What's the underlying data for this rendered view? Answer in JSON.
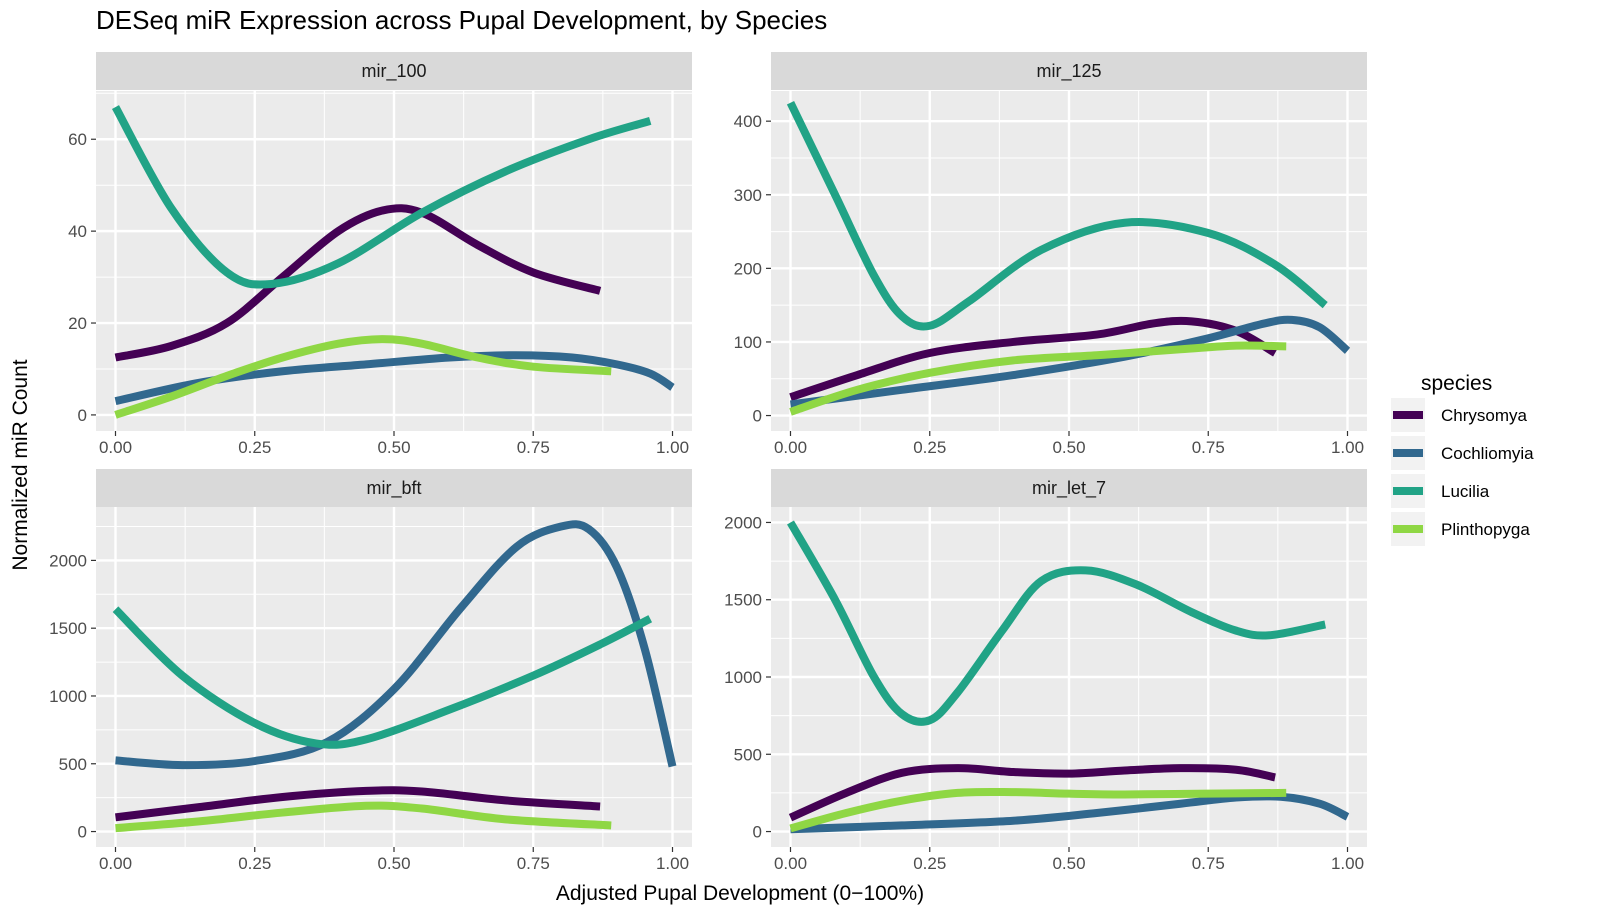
{
  "colors": {
    "panel_background": "#EBEBEB",
    "strip_background": "#D9D9D9",
    "grid": "#FFFFFF",
    "tick_text": "#4D4D4D"
  },
  "chart_data": {
    "type": "line",
    "title": "DESeq miR Expression across Pupal Development, by Species",
    "xlabel": "Adjusted Pupal Development (0−100%)",
    "ylabel": "Normalized miR Count",
    "legend_title": "species",
    "legend_placement": "right",
    "grid": true,
    "species": [
      {
        "name": "Chrysomya",
        "color": "#440154"
      },
      {
        "name": "Cochliomyia",
        "color": "#31688E"
      },
      {
        "name": "Lucilia",
        "color": "#21A386"
      },
      {
        "name": "Plinthopyga",
        "color": "#8FD744"
      }
    ],
    "xlim": [
      -0.035,
      1.035
    ],
    "x_ticks": [
      0,
      0.25,
      0.5,
      0.75,
      1
    ],
    "x_tick_labels": [
      "0.00",
      "0.25",
      "0.50",
      "0.75",
      "1.00"
    ],
    "panels": [
      {
        "label": "mir_100",
        "ylim": [
          -3.5,
          70.5
        ],
        "y_ticks": [
          0,
          20,
          40,
          60
        ],
        "y_tick_labels": [
          "0",
          "20",
          "40",
          "60"
        ],
        "series": [
          {
            "name": "Chrysomya",
            "x": [
              0,
              0.1,
              0.2,
              0.3,
              0.4,
              0.48,
              0.55,
              0.65,
              0.75,
              0.87
            ],
            "y": [
              12.5,
              15,
              20,
              30,
              40,
              44.5,
              44,
              37,
              31,
              27
            ]
          },
          {
            "name": "Cochliomyia",
            "x": [
              0,
              0.15,
              0.3,
              0.45,
              0.6,
              0.72,
              0.82,
              0.9,
              0.96,
              1.0
            ],
            "y": [
              3,
              7,
              9.5,
              11,
              12.5,
              13,
              12.5,
              11,
              9,
              6
            ]
          },
          {
            "name": "Lucilia",
            "x": [
              0,
              0.1,
              0.2,
              0.28,
              0.4,
              0.55,
              0.7,
              0.85,
              0.96
            ],
            "y": [
              67,
              45,
              31,
              28.5,
              33,
              44,
              53,
              60,
              64
            ]
          },
          {
            "name": "Plinthopyga",
            "x": [
              0,
              0.1,
              0.2,
              0.3,
              0.4,
              0.48,
              0.55,
              0.65,
              0.75,
              0.89
            ],
            "y": [
              0,
              4,
              8.5,
              12.5,
              15.5,
              16.5,
              15.5,
              12.5,
              10.5,
              9.5
            ]
          }
        ]
      },
      {
        "label": "mir_125",
        "ylim": [
          -21,
          441
        ],
        "y_ticks": [
          0,
          100,
          200,
          300,
          400
        ],
        "y_tick_labels": [
          "0",
          "100",
          "200",
          "300",
          "400"
        ],
        "series": [
          {
            "name": "Chrysomya",
            "x": [
              0,
              0.12,
              0.25,
              0.4,
              0.55,
              0.65,
              0.72,
              0.8,
              0.87
            ],
            "y": [
              25,
              55,
              85,
              100,
              110,
              125,
              128,
              115,
              85
            ]
          },
          {
            "name": "Cochliomyia",
            "x": [
              0,
              0.2,
              0.4,
              0.6,
              0.75,
              0.85,
              0.9,
              0.95,
              1.0
            ],
            "y": [
              15,
              35,
              55,
              80,
              105,
              125,
              130,
              120,
              88
            ]
          },
          {
            "name": "Lucilia",
            "x": [
              0,
              0.08,
              0.15,
              0.2,
              0.25,
              0.32,
              0.45,
              0.6,
              0.75,
              0.87,
              0.96
            ],
            "y": [
              425,
              300,
              190,
              135,
              122,
              155,
              225,
              262,
              248,
              205,
              150
            ]
          },
          {
            "name": "Plinthopyga",
            "x": [
              0,
              0.12,
              0.25,
              0.4,
              0.55,
              0.7,
              0.8,
              0.89
            ],
            "y": [
              5,
              35,
              58,
              75,
              82,
              90,
              95,
              94
            ]
          }
        ]
      },
      {
        "label": "mir_bft",
        "ylim": [
          -114,
          2394
        ],
        "y_ticks": [
          0,
          500,
          1000,
          1500,
          2000
        ],
        "y_tick_labels": [
          "0",
          "500",
          "1000",
          "1500",
          "2000"
        ],
        "series": [
          {
            "name": "Chrysomya",
            "x": [
              0,
              0.15,
              0.3,
              0.45,
              0.55,
              0.7,
              0.87
            ],
            "y": [
              105,
              180,
              255,
              300,
              295,
              230,
              185
            ]
          },
          {
            "name": "Cochliomyia",
            "x": [
              0,
              0.12,
              0.25,
              0.38,
              0.5,
              0.62,
              0.72,
              0.8,
              0.85,
              0.9,
              0.95,
              1.0
            ],
            "y": [
              525,
              490,
              520,
              660,
              1050,
              1650,
              2100,
              2250,
              2230,
              1950,
              1350,
              480
            ]
          },
          {
            "name": "Lucilia",
            "x": [
              0,
              0.12,
              0.25,
              0.36,
              0.45,
              0.6,
              0.75,
              0.87,
              0.96
            ],
            "y": [
              1640,
              1150,
              800,
              650,
              680,
              900,
              1150,
              1380,
              1570
            ]
          },
          {
            "name": "Plinthopyga",
            "x": [
              0,
              0.15,
              0.3,
              0.45,
              0.55,
              0.7,
              0.89
            ],
            "y": [
              25,
              75,
              140,
              190,
              170,
              90,
              45
            ]
          }
        ]
      },
      {
        "label": "mir_let_7",
        "ylim": [
          -100,
          2100
        ],
        "y_ticks": [
          0,
          500,
          1000,
          1500,
          2000
        ],
        "y_tick_labels": [
          "0",
          "500",
          "1000",
          "1500",
          "2000"
        ],
        "series": [
          {
            "name": "Chrysomya",
            "x": [
              0,
              0.1,
              0.2,
              0.3,
              0.4,
              0.5,
              0.6,
              0.7,
              0.8,
              0.87
            ],
            "y": [
              90,
              250,
              380,
              410,
              385,
              375,
              395,
              410,
              400,
              350
            ]
          },
          {
            "name": "Cochliomyia",
            "x": [
              0,
              0.2,
              0.4,
              0.55,
              0.7,
              0.8,
              0.88,
              0.95,
              1.0
            ],
            "y": [
              15,
              40,
              70,
              120,
              180,
              220,
              225,
              180,
              95
            ]
          },
          {
            "name": "Lucilia",
            "x": [
              0,
              0.08,
              0.15,
              0.2,
              0.25,
              0.3,
              0.38,
              0.45,
              0.53,
              0.62,
              0.72,
              0.8,
              0.86,
              0.96
            ],
            "y": [
              2000,
              1500,
              1000,
              760,
              720,
              900,
              1300,
              1620,
              1690,
              1600,
              1420,
              1300,
              1270,
              1340
            ]
          },
          {
            "name": "Plinthopyga",
            "x": [
              0,
              0.1,
              0.2,
              0.3,
              0.4,
              0.5,
              0.6,
              0.75,
              0.89
            ],
            "y": [
              20,
              120,
              200,
              250,
              255,
              245,
              240,
              245,
              250
            ]
          }
        ]
      }
    ]
  }
}
